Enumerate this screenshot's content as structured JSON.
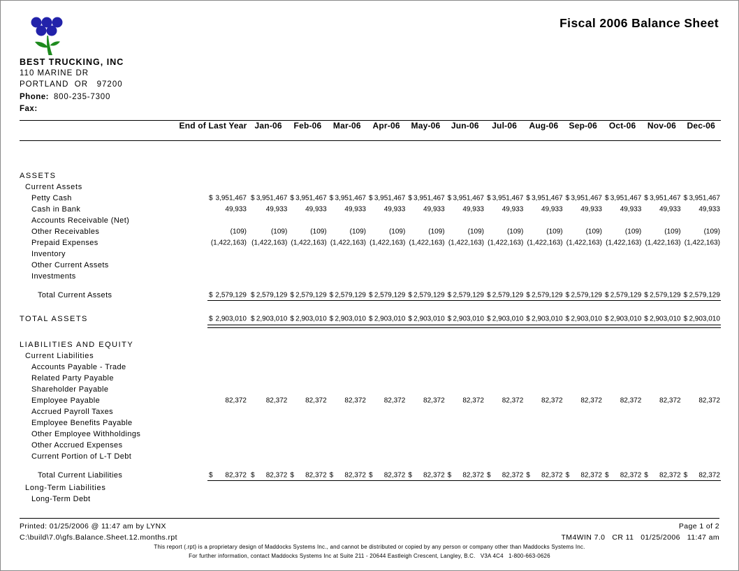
{
  "page": {
    "title": "Fiscal 2006 Balance Sheet"
  },
  "company": {
    "name": "BEST TRUCKING, INC",
    "address_line1": "110 MARINE DR",
    "address_line2": "PORTLAND  OR   97200",
    "phone_label": "Phone:",
    "phone_value": "800-235-7300",
    "fax_label": "Fax:",
    "logo_blue": "#2222aa",
    "logo_green": "#1d8a1d"
  },
  "table": {
    "columns": [
      "End of Last Year",
      "Jan-06",
      "Feb-06",
      "Mar-06",
      "Apr-06",
      "May-06",
      "Jun-06",
      "Jul-06",
      "Aug-06",
      "Sep-06",
      "Oct-06",
      "Nov-06",
      "Dec-06"
    ],
    "rows": [
      {
        "label": "ASSETS",
        "indent": 0,
        "style": "section",
        "values": []
      },
      {
        "label": "Current Assets",
        "indent": 1,
        "style": "sub",
        "values": []
      },
      {
        "label": "Petty Cash",
        "indent": 2,
        "dollar": true,
        "values": [
          "3,951,467",
          "3,951,467",
          "3,951,467",
          "3,951,467",
          "3,951,467",
          "3,951,467",
          "3,951,467",
          "3,951,467",
          "3,951,467",
          "3,951,467",
          "3,951,467",
          "3,951,467",
          "3,951,467"
        ]
      },
      {
        "label": "Cash in Bank",
        "indent": 2,
        "values": [
          "49,933",
          "49,933",
          "49,933",
          "49,933",
          "49,933",
          "49,933",
          "49,933",
          "49,933",
          "49,933",
          "49,933",
          "49,933",
          "49,933",
          "49,933"
        ]
      },
      {
        "label": "Accounts Receivable (Net)",
        "indent": 2,
        "values": []
      },
      {
        "label": "Other Receivables",
        "indent": 2,
        "values": [
          "(109)",
          "(109)",
          "(109)",
          "(109)",
          "(109)",
          "(109)",
          "(109)",
          "(109)",
          "(109)",
          "(109)",
          "(109)",
          "(109)",
          "(109)"
        ]
      },
      {
        "label": "Prepaid Expenses",
        "indent": 2,
        "values": [
          "(1,422,163)",
          "(1,422,163)",
          "(1,422,163)",
          "(1,422,163)",
          "(1,422,163)",
          "(1,422,163)",
          "(1,422,163)",
          "(1,422,163)",
          "(1,422,163)",
          "(1,422,163)",
          "(1,422,163)",
          "(1,422,163)",
          "(1,422,163)"
        ]
      },
      {
        "label": "Inventory",
        "indent": 2,
        "values": []
      },
      {
        "label": "Other Current Assets",
        "indent": 2,
        "values": []
      },
      {
        "label": "Investments",
        "indent": 2,
        "values": []
      },
      {
        "spacer": true,
        "height": 11
      },
      {
        "label": "Total Current Assets",
        "indent": 3,
        "dollar": true,
        "rule": "single",
        "values": [
          "2,579,129",
          "2,579,129",
          "2,579,129",
          "2,579,129",
          "2,579,129",
          "2,579,129",
          "2,579,129",
          "2,579,129",
          "2,579,129",
          "2,579,129",
          "2,579,129",
          "2,579,129",
          "2,579,129"
        ]
      },
      {
        "spacer": true,
        "height": 18
      },
      {
        "label": "TOTAL ASSETS",
        "indent": 0,
        "style": "section",
        "dollar": true,
        "rule": "double",
        "values": [
          "2,903,010",
          "2,903,010",
          "2,903,010",
          "2,903,010",
          "2,903,010",
          "2,903,010",
          "2,903,010",
          "2,903,010",
          "2,903,010",
          "2,903,010",
          "2,903,010",
          "2,903,010",
          "2,903,010"
        ]
      },
      {
        "spacer": true,
        "height": 21
      },
      {
        "label": "LIABILITIES AND EQUITY",
        "indent": 0,
        "style": "section",
        "values": []
      },
      {
        "label": "Current Liabilities",
        "indent": 1,
        "style": "sub",
        "values": []
      },
      {
        "label": "Accounts Payable - Trade",
        "indent": 2,
        "values": []
      },
      {
        "label": "Related Party Payable",
        "indent": 2,
        "values": []
      },
      {
        "label": "Shareholder Payable",
        "indent": 2,
        "values": []
      },
      {
        "label": "Employee Payable",
        "indent": 2,
        "values": [
          "82,372",
          "82,372",
          "82,372",
          "82,372",
          "82,372",
          "82,372",
          "82,372",
          "82,372",
          "82,372",
          "82,372",
          "82,372",
          "82,372",
          "82,372"
        ]
      },
      {
        "label": "Accrued Payroll Taxes",
        "indent": 2,
        "values": []
      },
      {
        "label": "Employee Benefits Payable",
        "indent": 2,
        "values": []
      },
      {
        "label": "Other Employee Withholdings",
        "indent": 2,
        "values": []
      },
      {
        "label": "Other Accrued Expenses",
        "indent": 2,
        "values": []
      },
      {
        "label": "Current Portion of L-T Debt",
        "indent": 2,
        "values": []
      },
      {
        "spacer": true,
        "height": 11
      },
      {
        "label": "Total Current Liabilities",
        "indent": 3,
        "dollar": true,
        "rule": "single",
        "values": [
          "82,372",
          "82,372",
          "82,372",
          "82,372",
          "82,372",
          "82,372",
          "82,372",
          "82,372",
          "82,372",
          "82,372",
          "82,372",
          "82,372",
          "82,372"
        ]
      },
      {
        "spacer": true,
        "height": 2
      },
      {
        "label": "Long-Term Liabilities",
        "indent": 1,
        "style": "sub",
        "values": []
      },
      {
        "label": "Long-Term Debt",
        "indent": 2,
        "values": []
      }
    ]
  },
  "footer": {
    "printed": "Printed: 01/25/2006 @ 11:47 am by LYNX",
    "report_path": "C:\\build\\7.0\\gfs.Balance.Sheet.12.months.rpt",
    "page_info": "Page 1 of 2",
    "app_info": "TM4WIN 7.0   CR 11   01/25/2006   11:47 am",
    "disclaimer_line1": "This report (.rpt) is a proprietary design of Maddocks Systems Inc., and cannot be distributed or copied by any person or company other than Maddocks Systems Inc.",
    "disclaimer_line2": "For further information, contact Maddocks Systems Inc at Suite 211 - 20644 Eastleigh Crescent, Langley, B.C.   V3A 4C4   1-800-663-0626"
  }
}
